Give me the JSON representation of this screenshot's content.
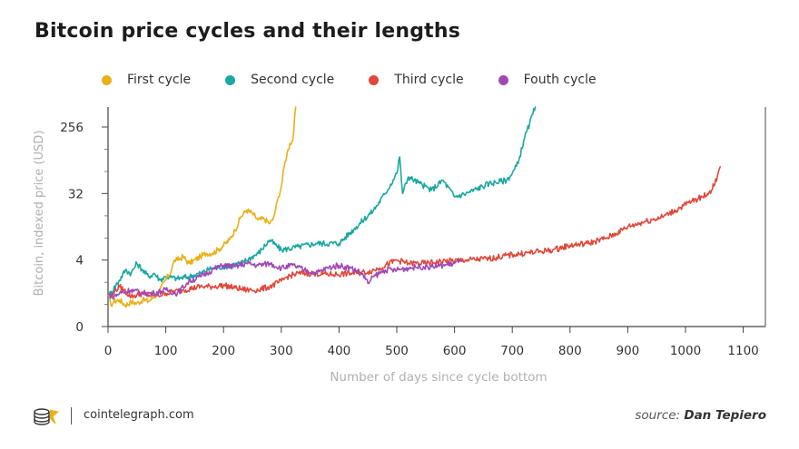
{
  "chart_data": {
    "type": "line",
    "title": "Bitcoin price cycles and their lengths",
    "xlabel": "Number of days since cycle bottom",
    "ylabel": "Bitcoin, indexed price (USD)",
    "x_ticks": [
      0,
      100,
      200,
      300,
      400,
      500,
      600,
      700,
      800,
      900,
      1000,
      1100
    ],
    "y_ticks": [
      {
        "value": 0,
        "label": "0"
      },
      {
        "value": 1,
        "label": "4"
      },
      {
        "value": 2,
        "label": "32"
      },
      {
        "value": 3,
        "label": "256"
      }
    ],
    "xlim": [
      0,
      1100
    ],
    "ylim": [
      0,
      3.3
    ],
    "y_scale": "log8",
    "legend_position": "top",
    "grid": false,
    "series": [
      {
        "name": "First cycle",
        "color": "#e8b018",
        "x": [
          0,
          5,
          10,
          20,
          30,
          40,
          50,
          60,
          70,
          80,
          90,
          100,
          110,
          115,
          120,
          130,
          140,
          150,
          160,
          170,
          180,
          190,
          200,
          210,
          220,
          230,
          240,
          250,
          260,
          270,
          280,
          285,
          290,
          295,
          300,
          305,
          310,
          315,
          320,
          325
        ],
        "y": [
          0.48,
          0.32,
          0.38,
          0.4,
          0.32,
          0.37,
          0.35,
          0.4,
          0.38,
          0.45,
          0.55,
          0.7,
          0.85,
          1.0,
          1.0,
          1.05,
          0.95,
          1.0,
          1.05,
          1.1,
          1.1,
          1.15,
          1.22,
          1.3,
          1.45,
          1.65,
          1.75,
          1.7,
          1.6,
          1.62,
          1.55,
          1.6,
          1.75,
          1.95,
          2.1,
          2.4,
          2.6,
          2.75,
          2.8,
          3.3
        ]
      },
      {
        "name": "Second cycle",
        "color": "#1ba7a2",
        "x": [
          0,
          20,
          30,
          40,
          50,
          60,
          70,
          80,
          90,
          100,
          120,
          140,
          160,
          180,
          200,
          230,
          260,
          280,
          300,
          330,
          360,
          400,
          430,
          460,
          480,
          500,
          505,
          510,
          520,
          540,
          560,
          580,
          600,
          620,
          660,
          690,
          700,
          710,
          720,
          730,
          740
        ],
        "y": [
          0.45,
          0.7,
          0.85,
          0.8,
          0.95,
          0.85,
          0.75,
          0.8,
          0.7,
          0.75,
          0.72,
          0.75,
          0.8,
          0.88,
          0.9,
          0.95,
          1.1,
          1.3,
          1.15,
          1.2,
          1.25,
          1.25,
          1.5,
          1.75,
          2.0,
          2.3,
          2.55,
          2.0,
          2.25,
          2.15,
          2.05,
          2.2,
          1.95,
          2.0,
          2.15,
          2.2,
          2.3,
          2.45,
          2.8,
          3.05,
          3.3
        ]
      },
      {
        "name": "Third cycle",
        "color": "#e0483a",
        "x": [
          0,
          20,
          40,
          60,
          80,
          100,
          130,
          160,
          180,
          200,
          220,
          240,
          260,
          280,
          300,
          310,
          330,
          360,
          390,
          420,
          450,
          470,
          500,
          520,
          550,
          580,
          620,
          660,
          700,
          740,
          770,
          800,
          830,
          860,
          880,
          900,
          930,
          960,
          990,
          1010,
          1030,
          1045,
          1055,
          1060
        ],
        "y": [
          0.45,
          0.6,
          0.45,
          0.5,
          0.45,
          0.5,
          0.55,
          0.6,
          0.6,
          0.62,
          0.58,
          0.55,
          0.55,
          0.6,
          0.68,
          0.75,
          0.8,
          0.8,
          0.78,
          0.8,
          0.82,
          0.88,
          1.0,
          0.95,
          0.95,
          0.98,
          1.0,
          1.02,
          1.08,
          1.12,
          1.15,
          1.22,
          1.25,
          1.32,
          1.4,
          1.5,
          1.58,
          1.65,
          1.78,
          1.88,
          1.95,
          2.05,
          2.25,
          2.4
        ]
      },
      {
        "name": "Fouth cycle",
        "color": "#a148b5",
        "x": [
          0,
          10,
          20,
          40,
          60,
          80,
          100,
          120,
          140,
          160,
          180,
          200,
          220,
          240,
          260,
          280,
          300,
          320,
          340,
          360,
          380,
          400,
          420,
          440,
          450,
          455,
          460,
          480,
          500,
          520,
          540,
          560,
          580,
          600,
          610
        ],
        "y": [
          0.48,
          0.45,
          0.5,
          0.55,
          0.5,
          0.5,
          0.55,
          0.5,
          0.68,
          0.75,
          0.85,
          0.92,
          0.9,
          0.95,
          0.92,
          0.95,
          0.88,
          0.92,
          0.85,
          0.8,
          0.88,
          0.92,
          0.88,
          0.8,
          0.65,
          0.7,
          0.75,
          0.85,
          0.85,
          0.88,
          0.9,
          0.9,
          0.92,
          0.95,
          0.98
        ]
      }
    ]
  },
  "footer": {
    "site": "cointelegraph.com",
    "source_prefix": "source:",
    "source_name": "Dan Tepiero"
  }
}
